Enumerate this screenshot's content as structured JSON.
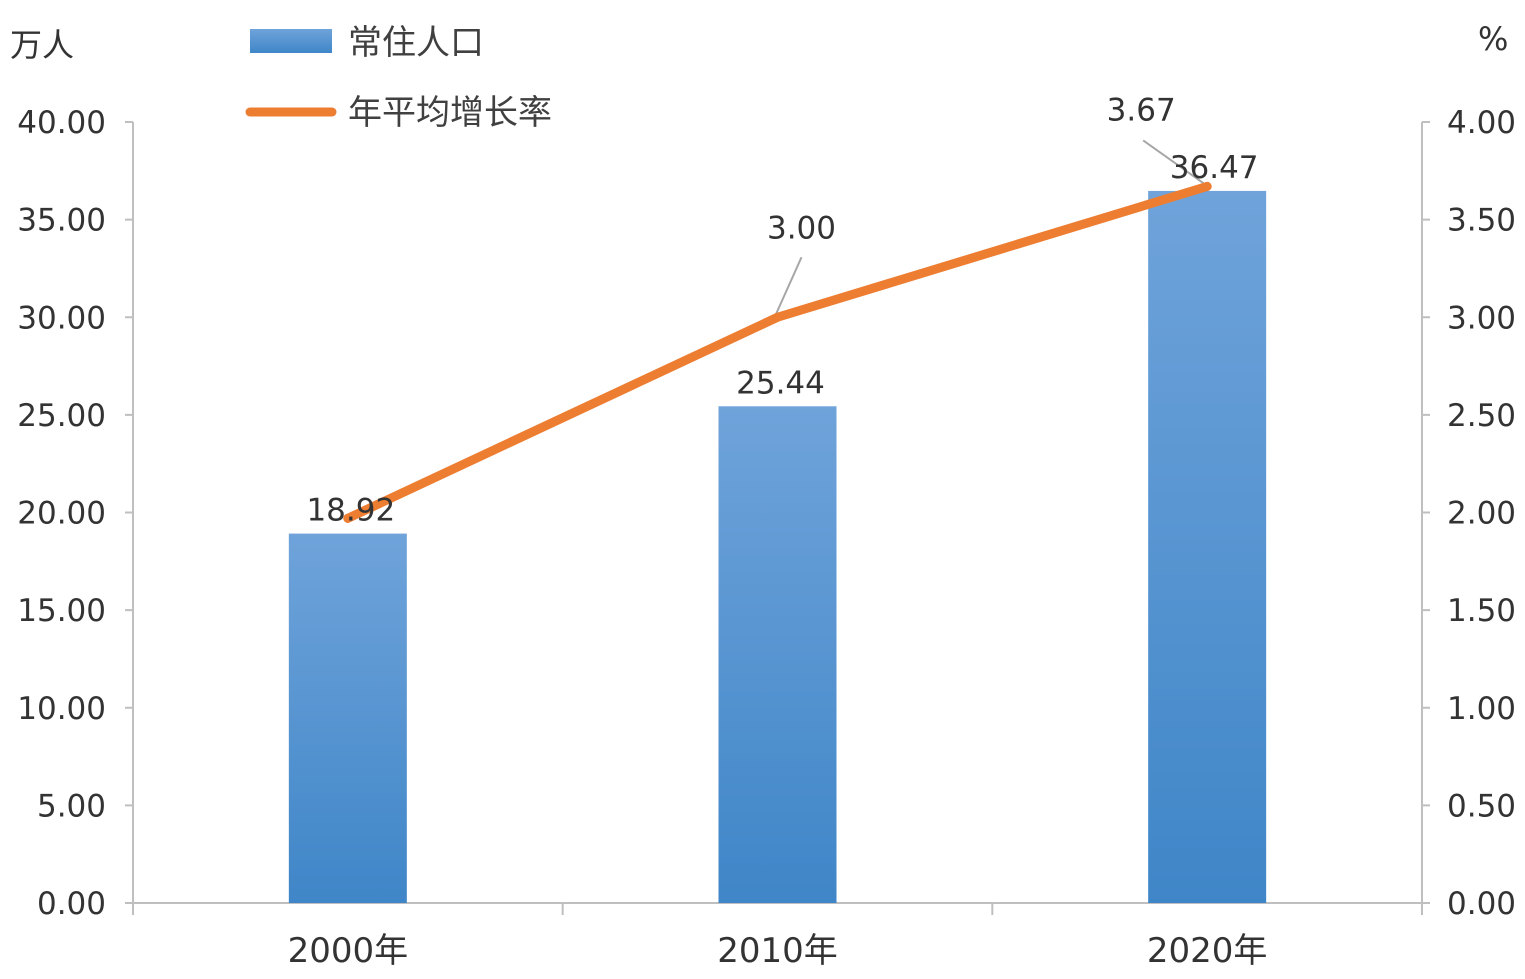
{
  "chart_data": {
    "type": "bar+line",
    "categories": [
      "2000年",
      "2010年",
      "2020年"
    ],
    "series": [
      {
        "name": "常住人口",
        "type": "bar",
        "axis": "left",
        "values": [
          18.92,
          25.44,
          36.47
        ],
        "labels": [
          "18.92",
          "25.44",
          "36.47"
        ]
      },
      {
        "name": "年平均增长率",
        "type": "line",
        "axis": "right",
        "values": [
          1.97,
          3.0,
          3.67
        ],
        "labels": [
          "",
          "3.00",
          "3.67"
        ]
      }
    ],
    "y_left": {
      "unit": "万人",
      "lim": [
        0,
        40
      ],
      "ticks": [
        "0.00",
        "5.00",
        "10.00",
        "15.00",
        "20.00",
        "25.00",
        "30.00",
        "35.00",
        "40.00"
      ]
    },
    "y_right": {
      "unit": "%",
      "lim": [
        0,
        4
      ],
      "ticks": [
        "0.00",
        "0.50",
        "1.00",
        "1.50",
        "2.00",
        "2.50",
        "3.00",
        "3.50",
        "4.00"
      ]
    },
    "legend_position": "top-left",
    "grid": false,
    "colors": {
      "bar_top": "#6fa3da",
      "bar_bottom": "#3f86c8",
      "line": "#ed7d31",
      "axis": "#bfbfbf",
      "leader": "#a6a6a6"
    }
  }
}
